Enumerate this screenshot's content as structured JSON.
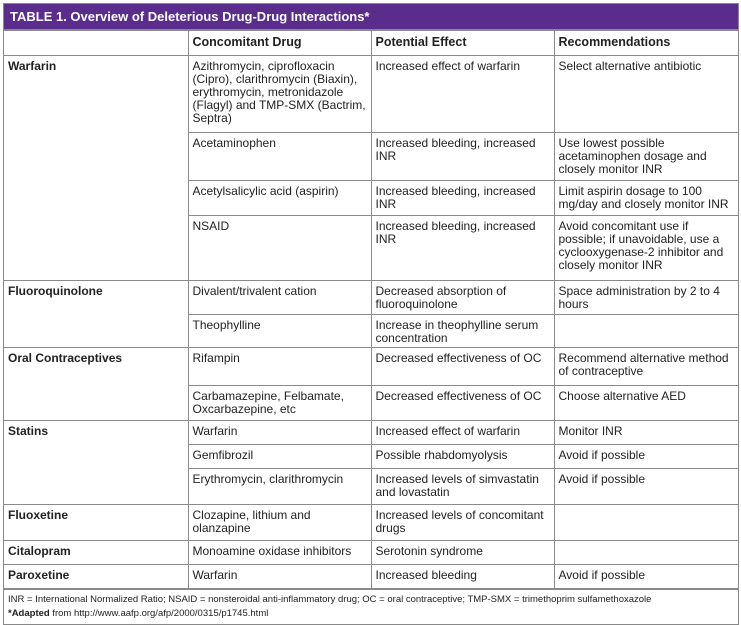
{
  "title": "TABLE 1. Overview of Deleterious Drug-Drug Interactions*",
  "headers": [
    "",
    "Concomitant Drug",
    "Potential Effect",
    "Recommendations"
  ],
  "groups": [
    {
      "drug": "Warfarin",
      "rows": [
        [
          "Azithromycin, ciprofloxacin (Cipro), clarithromycin (Biaxin), erythromycin, metronidazole (Flagyl) and TMP-SMX (Bactrim, Septra)",
          "Increased effect of warfarin",
          "Select alternative antibiotic"
        ],
        [
          "Acetaminophen",
          "Increased bleeding, increased INR",
          "Use lowest possible acetaminophen dosage and closely monitor INR"
        ],
        [
          "Acetylsalicylic acid (aspirin)",
          "Increased bleeding, increased INR",
          "Limit aspirin dosage to 100 mg/day and closely monitor INR"
        ],
        [
          "NSAID",
          "Increased bleeding, increased INR",
          "Avoid concomitant use if possible; if unavoidable, use a cyclooxygenase-2 inhibitor and closely monitor INR"
        ]
      ]
    },
    {
      "drug": "Fluoroquinolone",
      "rows": [
        [
          "Divalent/trivalent cation",
          "Decreased absorption of fluoroquinolone",
          "Space administration by 2 to 4 hours"
        ],
        [
          "Theophylline",
          "Increase in theophylline serum concentration",
          ""
        ]
      ]
    },
    {
      "drug": "Oral Contraceptives",
      "rows": [
        [
          "Rifampin",
          "Decreased effectiveness of OC",
          "Recommend alternative method of contraceptive"
        ],
        [
          "Carbamazepine, Felbamate, Oxcarbazepine, etc",
          "Decreased effectiveness of OC",
          "Choose alternative AED"
        ]
      ]
    },
    {
      "drug": "Statins",
      "rows": [
        [
          "Warfarin",
          "Increased effect of warfarin",
          "Monitor INR"
        ],
        [
          "Gemfibrozil",
          "Possible rhabdomyolysis",
          "Avoid if possible"
        ],
        [
          "Erythromycin, clarithromycin",
          "Increased levels of simvastatin and lovastatin",
          "Avoid if possible"
        ]
      ]
    },
    {
      "drug": "Fluoxetine",
      "rows": [
        [
          "Clozapine, lithium and olanzapine",
          "Increased levels of concomitant drugs",
          ""
        ]
      ]
    },
    {
      "drug": "Citalopram",
      "rows": [
        [
          "Monoamine oxidase inhibitors",
          "Serotonin syndrome",
          ""
        ]
      ]
    },
    {
      "drug": "Paroxetine",
      "rows": [
        [
          "Warfarin",
          "Increased bleeding",
          "Avoid if possible"
        ]
      ]
    }
  ],
  "footnote": {
    "abbreviations": "INR = International Normalized Ratio; NSAID = nonsteroidal anti-inflammatory drug; OC = oral contraceptive; TMP-SMX = trimethoprim sulfamethoxazole",
    "adapted_label": "*Adapted",
    "adapted_text": " from http://www.aafp.org/afp/2000/0315/p1745.html"
  },
  "colors": {
    "title_bg": "#5a2d8c",
    "title_text": "#ffffff",
    "border": "#8a8a8a"
  }
}
